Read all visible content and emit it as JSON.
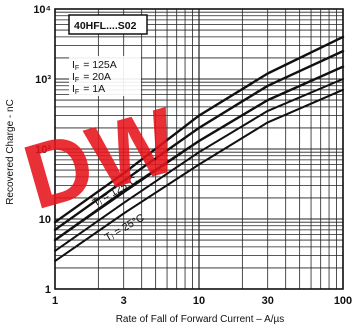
{
  "chart_data": {
    "type": "line",
    "title": "",
    "box_label": "40HFL....S02",
    "xlabel": "Rate of Fall of Forward Current – A/µs",
    "ylabel": "Recovered Charge - nC",
    "x_scale": "log",
    "y_scale": "log",
    "xlim": [
      1,
      100
    ],
    "ylim": [
      1,
      10000
    ],
    "x_ticks": [
      {
        "value": 1,
        "label": "1"
      },
      {
        "value": 3,
        "label": "3"
      },
      {
        "value": 10,
        "label": "10"
      },
      {
        "value": 30,
        "label": "30"
      },
      {
        "value": 100,
        "label": "100"
      }
    ],
    "y_ticks": [
      {
        "value": 1,
        "label": "1"
      },
      {
        "value": 10,
        "label": "10"
      },
      {
        "value": 100,
        "label": "10²"
      },
      {
        "value": 1000,
        "label": "10³"
      },
      {
        "value": 10000,
        "label": "10⁴"
      }
    ],
    "grid": true,
    "current_legend": [
      {
        "label": "I",
        "sub": "F",
        "value": "= 125A"
      },
      {
        "label": "I",
        "sub": "F",
        "value": "= 20A"
      },
      {
        "label": "I",
        "sub": "F",
        "value": "= 1A"
      }
    ],
    "temp_labels": [
      {
        "text": "Tⱼ = 125°C",
        "x": 1.9,
        "y": 15
      },
      {
        "text": "Tⱼ = 25°C",
        "x": 2.3,
        "y": 4.8
      }
    ],
    "series": [
      {
        "x": [
          1,
          3,
          10,
          30,
          100
        ],
        "y": [
          5,
          25,
          130,
          500,
          1500
        ],
        "group": "125C",
        "current": "1A"
      },
      {
        "x": [
          1,
          3,
          10,
          30,
          100
        ],
        "y": [
          7,
          35,
          200,
          800,
          2500
        ],
        "group": "125C",
        "current": "20A"
      },
      {
        "x": [
          1,
          3,
          10,
          30,
          100
        ],
        "y": [
          9,
          45,
          300,
          1200,
          4000
        ],
        "group": "125C",
        "current": "125A"
      },
      {
        "x": [
          1,
          3,
          10,
          30,
          100
        ],
        "y": [
          2.5,
          12,
          60,
          240,
          700
        ],
        "group": "25C",
        "current": "1A"
      },
      {
        "x": [
          1,
          3,
          10,
          30,
          100
        ],
        "y": [
          3.5,
          17,
          90,
          350,
          1000
        ],
        "group": "25C",
        "current": "20A"
      },
      {
        "x": [
          1,
          3,
          10,
          30,
          100
        ],
        "y": [
          5,
          24,
          130,
          500,
          1500
        ],
        "group": "25C",
        "current": "125A"
      }
    ],
    "watermark": "DW",
    "colors": {
      "ink": "#111111",
      "grid": "#222222",
      "watermark": "#e8141c"
    }
  }
}
